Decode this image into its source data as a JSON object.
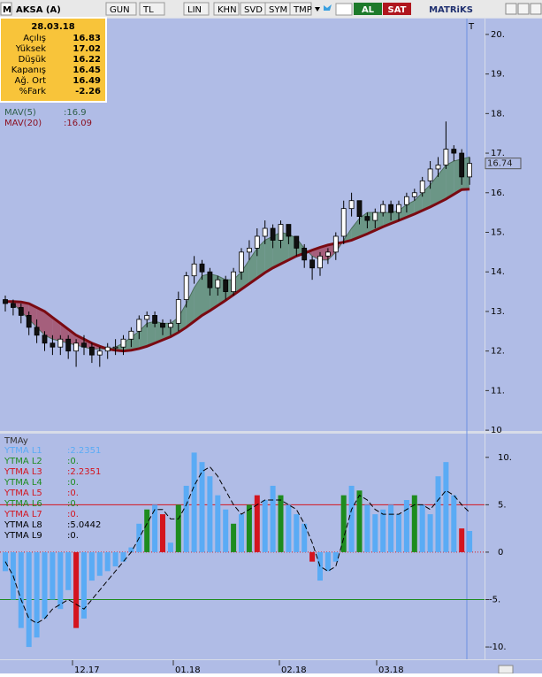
{
  "toolbar": {
    "logo": "M",
    "symbol": "AKSA (A)",
    "buttons": [
      "GUN",
      "TL",
      "LIN",
      "KHN",
      "SVD",
      "SYM",
      "TMP"
    ],
    "buy": "AL",
    "sell": "SAT",
    "brand": "MATRiKS"
  },
  "info": {
    "date": "28.03.18",
    "rows": [
      [
        "Açılış",
        "16.83"
      ],
      [
        "Yüksek",
        "17.02"
      ],
      [
        "Düşük",
        "16.22"
      ],
      [
        "Kapanış",
        "16.45"
      ],
      [
        "Ağ. Ort",
        "16.49"
      ],
      [
        "%Fark",
        "-2.26"
      ]
    ]
  },
  "price": {
    "legend": [
      {
        "name": "MAV(5)",
        "value": ":16.9",
        "color": "#2f5f4a"
      },
      {
        "name": "MAV(20)",
        "value": ":16.09",
        "color": "#8b1020"
      }
    ],
    "marker": "T",
    "last_label": "16.74",
    "last": 16.74,
    "ylim": [
      9.98,
      20.4
    ],
    "yticks": [
      {
        "value": 11,
        "label": "11."
      },
      {
        "value": 12,
        "label": "12."
      },
      {
        "value": 13,
        "label": "13."
      },
      {
        "value": 14,
        "label": "14."
      },
      {
        "value": 15,
        "label": "15."
      },
      {
        "value": 16,
        "label": "16."
      },
      {
        "value": 17,
        "label": "17."
      },
      {
        "value": 18,
        "label": "18."
      },
      {
        "value": 19,
        "label": "19."
      },
      {
        "value": 20,
        "label": "20."
      },
      {
        "value": 10,
        "label": "10"
      }
    ],
    "open": [
      13.3,
      13.2,
      13.1,
      12.9,
      12.6,
      12.4,
      12.2,
      12.1,
      12.3,
      12.0,
      12.2,
      12.1,
      11.9,
      12.0,
      12.1,
      12.1,
      12.3,
      12.5,
      12.8,
      12.9,
      12.7,
      12.6,
      12.7,
      13.3,
      13.9,
      14.2,
      14.0,
      13.6,
      13.8,
      13.5,
      14.0,
      14.5,
      14.6,
      14.9,
      15.1,
      14.8,
      15.2,
      14.9,
      14.6,
      14.3,
      14.1,
      14.4,
      14.5,
      14.9,
      15.6,
      15.8,
      15.4,
      15.3,
      15.5,
      15.7,
      15.5,
      15.7,
      15.9,
      16.0,
      16.3,
      16.6,
      16.7,
      17.1,
      17.0,
      16.4
    ],
    "high": [
      13.4,
      13.3,
      13.2,
      13.0,
      12.8,
      12.5,
      12.4,
      12.4,
      12.4,
      12.3,
      12.4,
      12.2,
      12.1,
      12.2,
      12.3,
      12.4,
      12.6,
      12.9,
      13.0,
      13.0,
      12.8,
      12.8,
      13.5,
      14.0,
      14.4,
      14.3,
      14.1,
      13.9,
      13.9,
      14.1,
      14.6,
      14.8,
      15.1,
      15.3,
      15.2,
      15.3,
      15.2,
      14.9,
      14.7,
      14.4,
      14.5,
      14.6,
      15.0,
      15.8,
      16.0,
      15.8,
      15.5,
      15.6,
      15.8,
      15.8,
      15.8,
      16.0,
      16.1,
      16.4,
      16.8,
      16.9,
      17.8,
      17.2,
      17.1,
      16.9
    ],
    "low": [
      13.0,
      12.9,
      12.7,
      12.4,
      12.2,
      12.0,
      11.9,
      11.9,
      11.8,
      11.6,
      11.9,
      11.7,
      11.6,
      11.8,
      11.9,
      11.9,
      12.1,
      12.3,
      12.6,
      12.6,
      12.4,
      12.4,
      12.5,
      13.1,
      13.7,
      13.8,
      13.4,
      13.4,
      13.3,
      13.4,
      13.8,
      14.3,
      14.4,
      14.7,
      14.6,
      14.6,
      14.7,
      14.4,
      14.1,
      13.8,
      13.9,
      14.2,
      14.3,
      14.7,
      15.4,
      15.2,
      15.1,
      15.1,
      15.4,
      15.3,
      15.3,
      15.5,
      15.8,
      15.9,
      16.1,
      16.4,
      16.6,
      16.8,
      16.2,
      16.2
    ],
    "close": [
      13.2,
      13.1,
      12.9,
      12.6,
      12.4,
      12.2,
      12.1,
      12.3,
      12.0,
      12.2,
      12.1,
      11.9,
      12.0,
      12.1,
      12.1,
      12.3,
      12.5,
      12.8,
      12.9,
      12.7,
      12.6,
      12.7,
      13.3,
      13.9,
      14.2,
      14.0,
      13.6,
      13.8,
      13.5,
      14.0,
      14.5,
      14.6,
      14.9,
      15.1,
      14.8,
      15.2,
      14.9,
      14.6,
      14.3,
      14.1,
      14.4,
      14.5,
      14.9,
      15.6,
      15.8,
      15.4,
      15.3,
      15.5,
      15.7,
      15.5,
      15.7,
      15.9,
      16.0,
      16.3,
      16.6,
      16.7,
      17.1,
      17.0,
      16.4,
      16.74
    ],
    "mav5": [
      13.3,
      13.2,
      13.0,
      12.8,
      12.6,
      12.4,
      12.3,
      12.25,
      12.2,
      12.15,
      12.1,
      12.05,
      12.05,
      12.05,
      12.1,
      12.2,
      12.35,
      12.5,
      12.7,
      12.75,
      12.7,
      12.7,
      12.85,
      13.2,
      13.6,
      13.9,
      13.95,
      13.9,
      13.8,
      13.8,
      14.0,
      14.3,
      14.6,
      14.8,
      14.9,
      15.0,
      14.95,
      14.85,
      14.6,
      14.4,
      14.3,
      14.3,
      14.5,
      14.8,
      15.1,
      15.35,
      15.5,
      15.5,
      15.5,
      15.5,
      15.55,
      15.7,
      15.8,
      16.0,
      16.2,
      16.45,
      16.7,
      16.8,
      16.85,
      16.9
    ],
    "mav20": [
      13.25,
      13.25,
      13.24,
      13.2,
      13.1,
      13.0,
      12.85,
      12.7,
      12.55,
      12.4,
      12.3,
      12.2,
      12.12,
      12.05,
      12.02,
      12.0,
      12.02,
      12.06,
      12.12,
      12.2,
      12.28,
      12.36,
      12.47,
      12.6,
      12.75,
      12.9,
      13.02,
      13.15,
      13.28,
      13.42,
      13.56,
      13.7,
      13.84,
      13.98,
      14.1,
      14.2,
      14.3,
      14.4,
      14.47,
      14.55,
      14.62,
      14.68,
      14.72,
      14.75,
      14.8,
      14.88,
      14.96,
      15.05,
      15.14,
      15.22,
      15.3,
      15.38,
      15.46,
      15.55,
      15.64,
      15.74,
      15.84,
      15.96,
      16.08,
      16.09
    ],
    "up_fill": "#5f8f74",
    "down_fill": "#a34f68",
    "mav5_color": "#4d6e5c",
    "mav20_color": "#7a0a12"
  },
  "indicator": {
    "title": "TMAy",
    "legend": [
      {
        "name": "YTMA L1",
        "value": ":2.2351",
        "color": "#5aabf5"
      },
      {
        "name": "YTMA L2",
        "value": ":0.",
        "color": "#1e8c1e"
      },
      {
        "name": "YTMA L3",
        "value": ":2.2351",
        "color": "#d4141e"
      },
      {
        "name": "YTMA L4",
        "value": ":0.",
        "color": "#1e8c1e"
      },
      {
        "name": "YTMA L5",
        "value": ":0.",
        "color": "#d4141e"
      },
      {
        "name": "YTMA L6",
        "value": ":0.",
        "color": "#1e8c1e"
      },
      {
        "name": "YTMA L7",
        "value": ":0.",
        "color": "#d4141e"
      },
      {
        "name": "YTMA L8",
        "value": ":5.0442",
        "color": "#000000"
      },
      {
        "name": "YTMA L9",
        "value": ":0.",
        "color": "#000000"
      }
    ],
    "ylim": [
      -11.3,
      12.5
    ],
    "yticks": [
      {
        "value": 10,
        "label": "10."
      },
      {
        "value": 5,
        "label": "5."
      },
      {
        "value": 0,
        "label": "0"
      },
      {
        "value": -5,
        "label": "-5."
      },
      {
        "value": -10,
        "label": "-10."
      }
    ],
    "upper": 5,
    "lower": -5,
    "values": [
      -2,
      -5,
      -8,
      -10,
      -9,
      -7,
      -5,
      -6,
      -4,
      -8,
      -7,
      -3,
      -2.5,
      -2,
      -1.5,
      -1,
      0.5,
      3,
      4.5,
      5,
      4,
      1,
      5,
      7,
      10.5,
      9.5,
      8,
      6,
      4.5,
      3,
      4,
      5,
      6,
      5.5,
      7,
      6,
      5,
      4,
      3,
      -1,
      -3,
      -2,
      -1,
      6,
      7,
      6.5,
      5,
      4,
      4.5,
      5,
      4,
      5.5,
      6,
      5,
      4,
      8,
      9.5,
      6,
      2.5,
      2.2351
    ],
    "signal": [
      -1,
      -2.5,
      -5,
      -7,
      -7.5,
      -7,
      -6,
      -5.5,
      -5,
      -5.5,
      -6,
      -5,
      -4,
      -3,
      -2,
      -1,
      0,
      1.5,
      3,
      4.5,
      4.5,
      3.5,
      3.5,
      5,
      7,
      8.5,
      9,
      8,
      6.5,
      5,
      4,
      4.5,
      5,
      5.5,
      5.5,
      5.5,
      5,
      4.5,
      3,
      1,
      -1.5,
      -2,
      -1.5,
      1.5,
      4.5,
      6,
      5.5,
      4.5,
      4,
      4,
      4,
      4.5,
      5,
      5,
      4.5,
      5.5,
      6.5,
      6,
      5,
      4.2
    ],
    "colors": [
      "#5aabf5",
      "#5aabf5",
      "#5aabf5",
      "#5aabf5",
      "#5aabf5",
      "#5aabf5",
      "#5aabf5",
      "#5aabf5",
      "#5aabf5",
      "#d4141e",
      "#5aabf5",
      "#5aabf5",
      "#5aabf5",
      "#5aabf5",
      "#5aabf5",
      "#5aabf5",
      "#5aabf5",
      "#5aabf5",
      "#1e8c1e",
      "#5aabf5",
      "#d4141e",
      "#5aabf5",
      "#1e8c1e",
      "#5aabf5",
      "#5aabf5",
      "#5aabf5",
      "#5aabf5",
      "#5aabf5",
      "#5aabf5",
      "#1e8c1e",
      "#5aabf5",
      "#1e8c1e",
      "#d4141e",
      "#5aabf5",
      "#5aabf5",
      "#1e8c1e",
      "#5aabf5",
      "#5aabf5",
      "#5aabf5",
      "#d4141e",
      "#5aabf5",
      "#5aabf5",
      "#5aabf5",
      "#1e8c1e",
      "#5aabf5",
      "#1e8c1e",
      "#5aabf5",
      "#5aabf5",
      "#5aabf5",
      "#5aabf5",
      "#5aabf5",
      "#5aabf5",
      "#1e8c1e",
      "#5aabf5",
      "#5aabf5",
      "#5aabf5",
      "#5aabf5",
      "#5aabf5",
      "#d4141e",
      "#5aabf5"
    ]
  },
  "xaxis": {
    "labels": [
      "12.17",
      "01.18",
      "02.18",
      "03.18"
    ]
  }
}
